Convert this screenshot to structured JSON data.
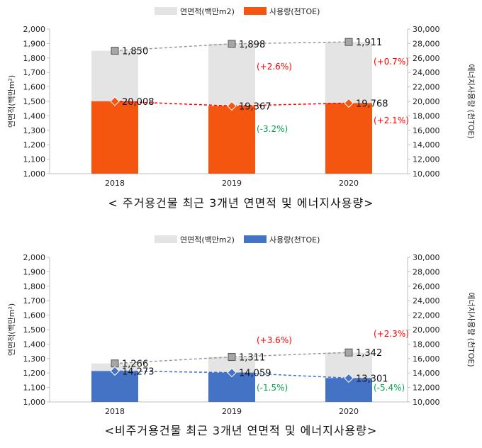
{
  "colors": {
    "area_bar": "#e4e4e4",
    "usage_top": "#f4560f",
    "usage_bottom": "#4472c4",
    "area_line": "#9a9a9a",
    "usage_line_top": "#ff0000",
    "usage_line_bottom": "#3b6fd1",
    "pct_up": "#ff0000",
    "pct_down": "#00a651"
  },
  "chart_data": [
    {
      "type": "bar",
      "caption": "< 주거용건물 최근 3개년 연면적 및 에너지사용량>",
      "legend": [
        "연면적(백만m2)",
        "사용량(천TOE)"
      ],
      "ylabel": "연면적(백만m²)",
      "y2label": "에너지사용량 (천TOE)",
      "categories": [
        "2018",
        "2019",
        "2020"
      ],
      "ylim": [
        1000,
        2000
      ],
      "y2lim": [
        10000,
        30000
      ],
      "yticks": [
        "1,000",
        "1,100",
        "1,200",
        "1,300",
        "1,400",
        "1,500",
        "1,600",
        "1,700",
        "1,800",
        "1,900",
        "2,000"
      ],
      "y2ticks": [
        "10,000",
        "12,000",
        "14,000",
        "16,000",
        "18,000",
        "20,000",
        "22,000",
        "24,000",
        "26,000",
        "28,000",
        "30,000"
      ],
      "series": [
        {
          "name": "연면적(백만m2)",
          "axis": "left",
          "values": [
            1850,
            1898,
            1911
          ],
          "labels": [
            "1,850",
            "1,898",
            "1,911"
          ]
        },
        {
          "name": "사용량(천TOE)",
          "axis": "right",
          "values": [
            20008,
            19367,
            19768
          ],
          "labels": [
            "20,008",
            "19,367",
            "19,768"
          ]
        }
      ],
      "area_pct": [
        "",
        "(+2.6%)",
        "(+0.7%)"
      ],
      "usage_pct": [
        "",
        "(-3.2%)",
        "(+2.1%)"
      ]
    },
    {
      "type": "bar",
      "caption": "<비주거용건물 최근 3개년 연면적 및 에너지사용량>",
      "legend": [
        "연면적(백만m2)",
        "사용량(천TOE)"
      ],
      "ylabel": "연면적(백만m²)",
      "y2label": "에너지사용량 (천TOE)",
      "categories": [
        "2018",
        "2019",
        "2020"
      ],
      "ylim": [
        1000,
        2000
      ],
      "y2lim": [
        10000,
        30000
      ],
      "yticks": [
        "1,000",
        "1,100",
        "1,200",
        "1,300",
        "1,400",
        "1,500",
        "1,600",
        "1,700",
        "1,800",
        "1,900",
        "2,000"
      ],
      "y2ticks": [
        "10,000",
        "12,000",
        "14,000",
        "16,000",
        "18,000",
        "20,000",
        "22,000",
        "24,000",
        "26,000",
        "28,000",
        "30,000"
      ],
      "series": [
        {
          "name": "연면적(백만m2)",
          "axis": "left",
          "values": [
            1266,
            1311,
            1342
          ],
          "labels": [
            "1,266",
            "1,311",
            "1,342"
          ]
        },
        {
          "name": "사용량(천TOE)",
          "axis": "right",
          "values": [
            14273,
            14059,
            13301
          ],
          "labels": [
            "14,273",
            "14,059",
            "13,301"
          ]
        }
      ],
      "area_pct": [
        "",
        "(+3.6%)",
        "(+2.3%)"
      ],
      "usage_pct": [
        "",
        "(-1.5%)",
        "(-5.4%)"
      ]
    }
  ]
}
